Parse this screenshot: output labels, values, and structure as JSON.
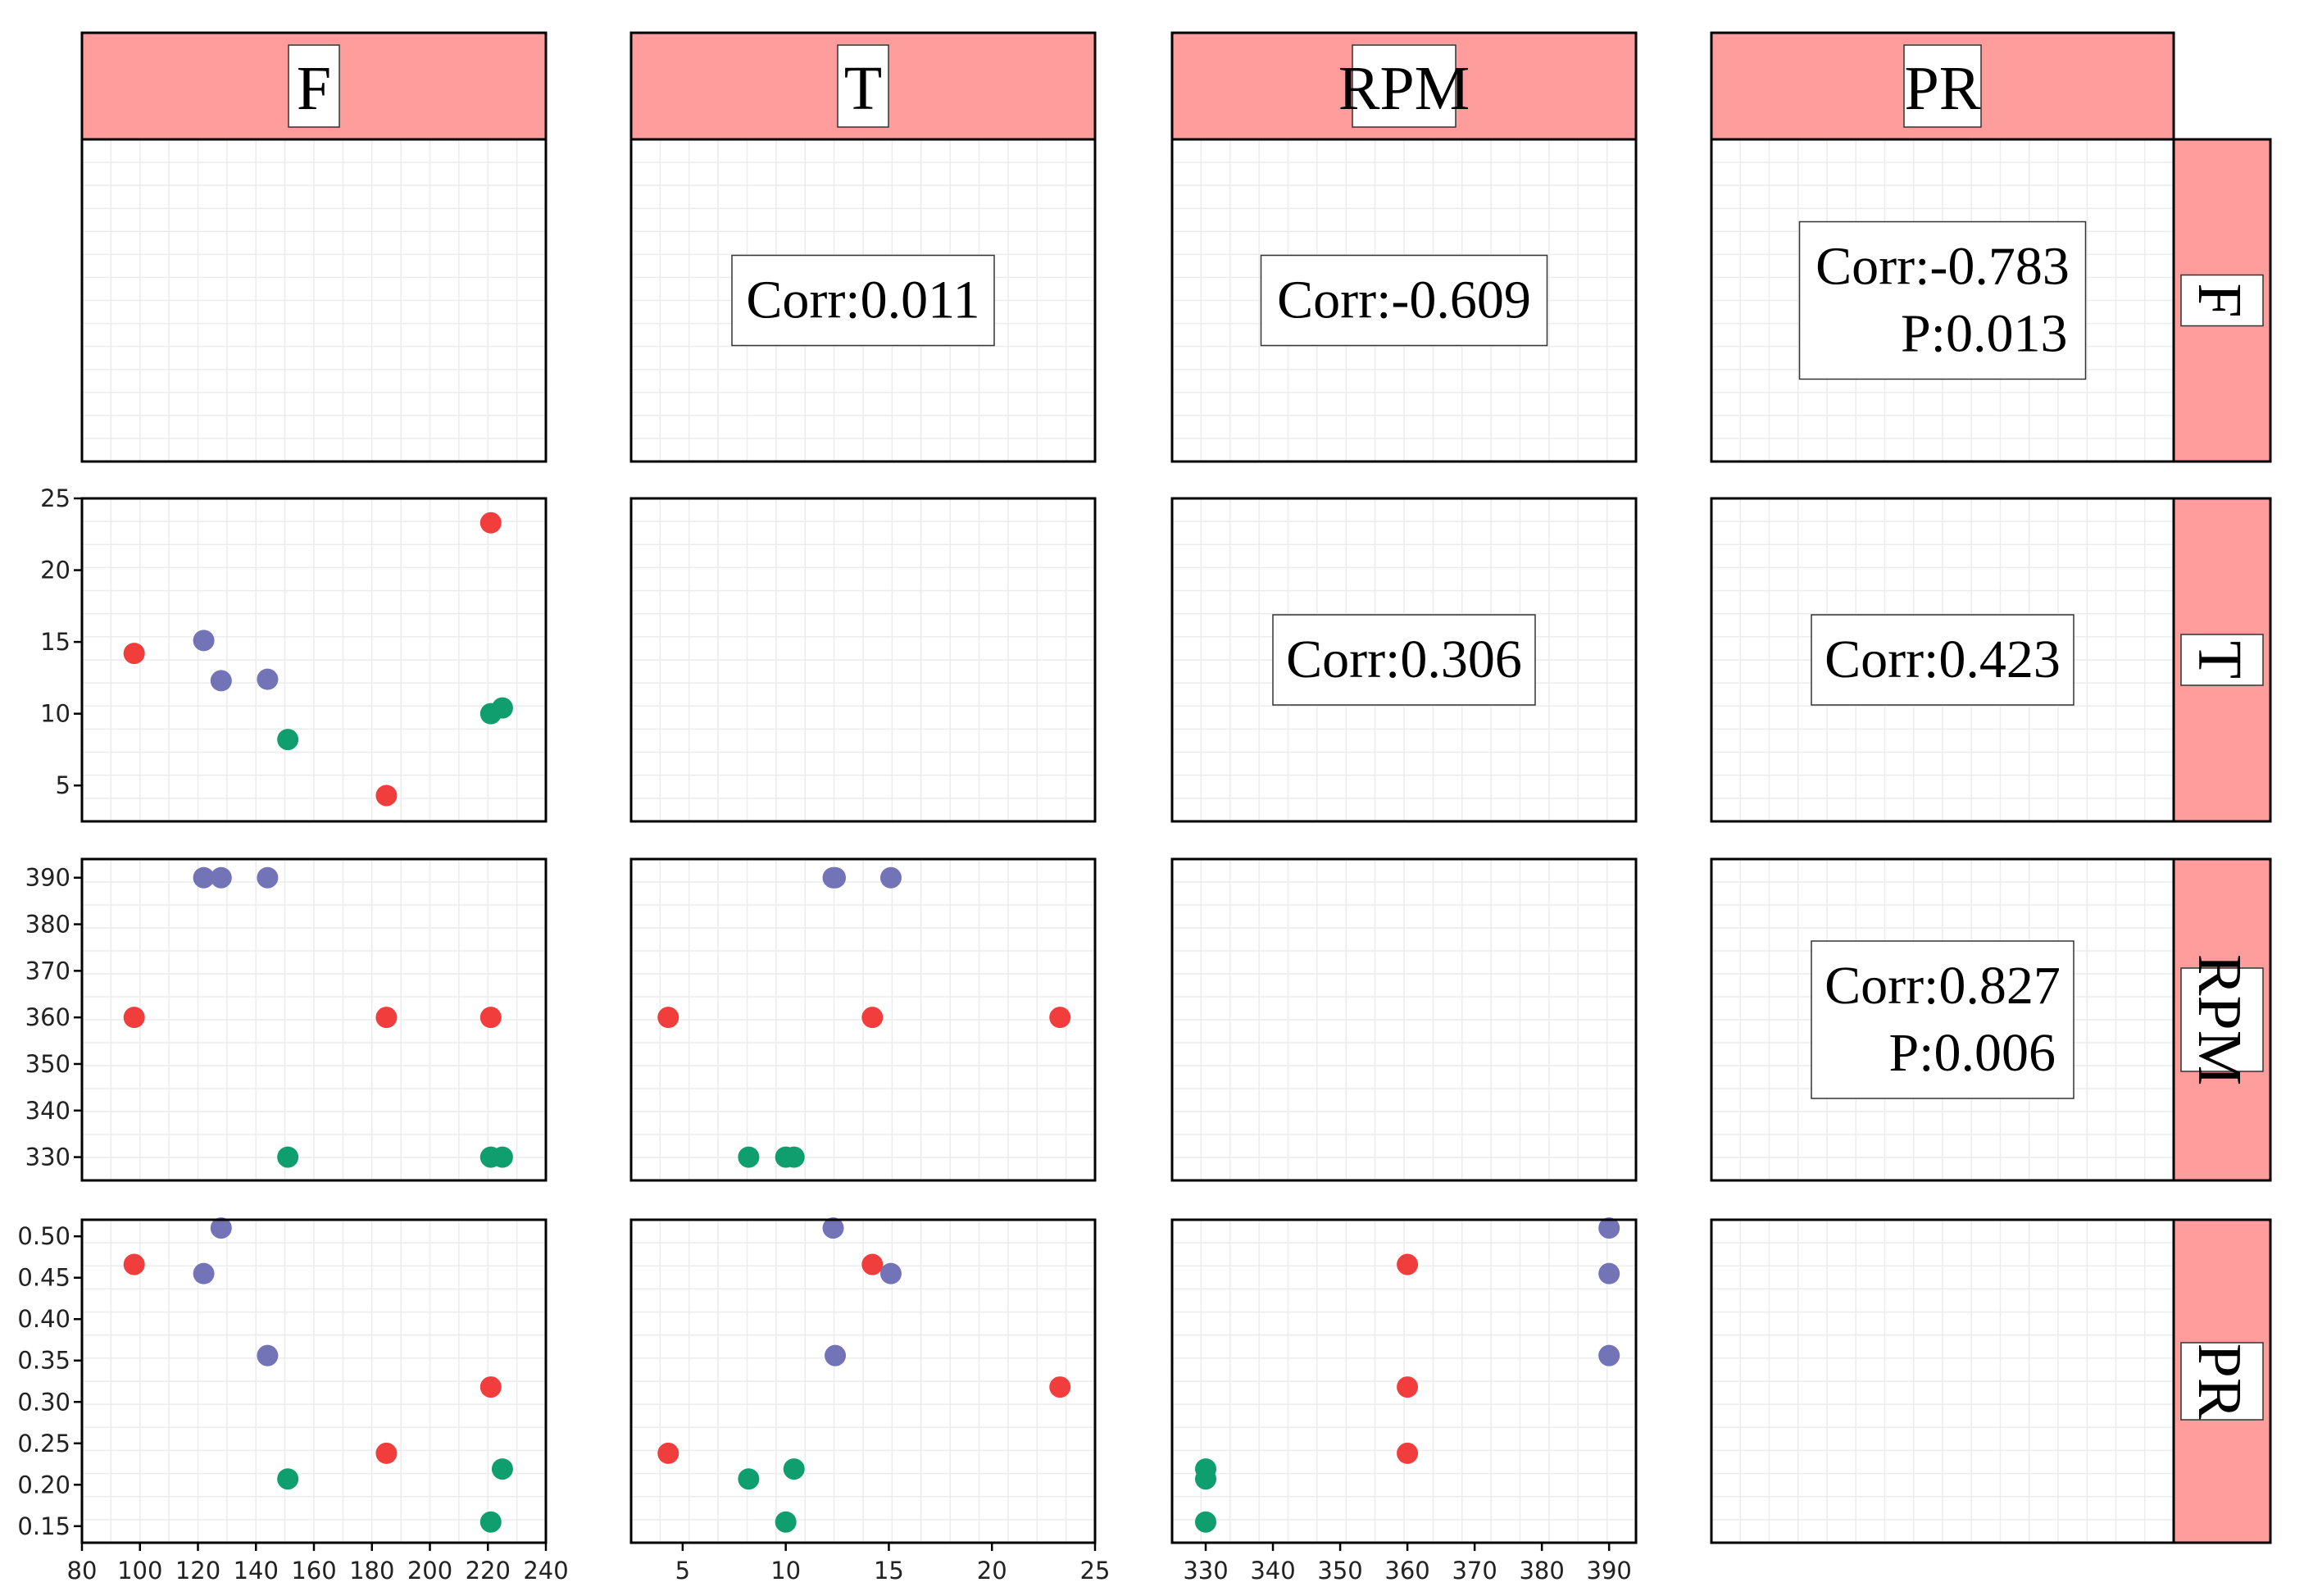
{
  "variables": [
    "F",
    "T",
    "RPM",
    "PR"
  ],
  "colors": {
    "strip_fill": "#ff9c9c",
    "group_red": "#f23d3d",
    "group_blue": "#7373b8",
    "group_green": "#0f9e6e",
    "grid": "#ececec",
    "frame": "#000000"
  },
  "column_strips": [
    "F",
    "T",
    "RPM",
    "PR"
  ],
  "row_strips": [
    "F",
    "T",
    "RPM",
    "PR"
  ],
  "correlations": [
    {
      "row": 0,
      "col": 1,
      "lines": [
        "Corr:0.011"
      ]
    },
    {
      "row": 0,
      "col": 2,
      "lines": [
        "Corr:-0.609"
      ]
    },
    {
      "row": 0,
      "col": 3,
      "lines": [
        "Corr:-0.783",
        "P:0.013"
      ]
    },
    {
      "row": 1,
      "col": 2,
      "lines": [
        "Corr:0.306"
      ]
    },
    {
      "row": 1,
      "col": 3,
      "lines": [
        "Corr:0.423"
      ]
    },
    {
      "row": 2,
      "col": 3,
      "lines": [
        "Corr:0.827",
        "P:0.006"
      ]
    }
  ],
  "chart_data": {
    "type": "scatter",
    "groups": [
      "red",
      "blue",
      "green"
    ],
    "observations": [
      {
        "F": 98,
        "T": 14.2,
        "RPM": 360,
        "PR": 0.466,
        "group": "red"
      },
      {
        "F": 185,
        "T": 4.3,
        "RPM": 360,
        "PR": 0.238,
        "group": "red"
      },
      {
        "F": 221,
        "T": 23.3,
        "RPM": 360,
        "PR": 0.318,
        "group": "red"
      },
      {
        "F": 122,
        "T": 15.1,
        "RPM": 390,
        "PR": 0.455,
        "group": "blue"
      },
      {
        "F": 128,
        "T": 12.3,
        "RPM": 390,
        "PR": 0.51,
        "group": "blue"
      },
      {
        "F": 144,
        "T": 12.4,
        "RPM": 390,
        "PR": 0.356,
        "group": "blue"
      },
      {
        "F": 151,
        "T": 8.2,
        "RPM": 330,
        "PR": 0.207,
        "group": "green"
      },
      {
        "F": 221,
        "T": 10.0,
        "RPM": 330,
        "PR": 0.155,
        "group": "green"
      },
      {
        "F": 225,
        "T": 10.4,
        "RPM": 330,
        "PR": 0.219,
        "group": "green"
      }
    ],
    "axes": {
      "F": {
        "range": [
          80,
          240
        ],
        "ticks": [
          "80",
          "100",
          "120",
          "140",
          "160",
          "180",
          "200",
          "220",
          "240"
        ]
      },
      "T": {
        "range": [
          2.5,
          25
        ],
        "ticks": [
          "5",
          "10",
          "15",
          "20",
          "25"
        ]
      },
      "RPM": {
        "range": [
          325,
          394
        ],
        "ticks": [
          "330",
          "340",
          "350",
          "360",
          "370",
          "380",
          "390"
        ]
      },
      "PR": {
        "range": [
          0.13,
          0.52
        ],
        "ticks": [
          "0.15",
          "0.20",
          "0.25",
          "0.30",
          "0.35",
          "0.40",
          "0.45",
          "0.50"
        ]
      }
    }
  }
}
